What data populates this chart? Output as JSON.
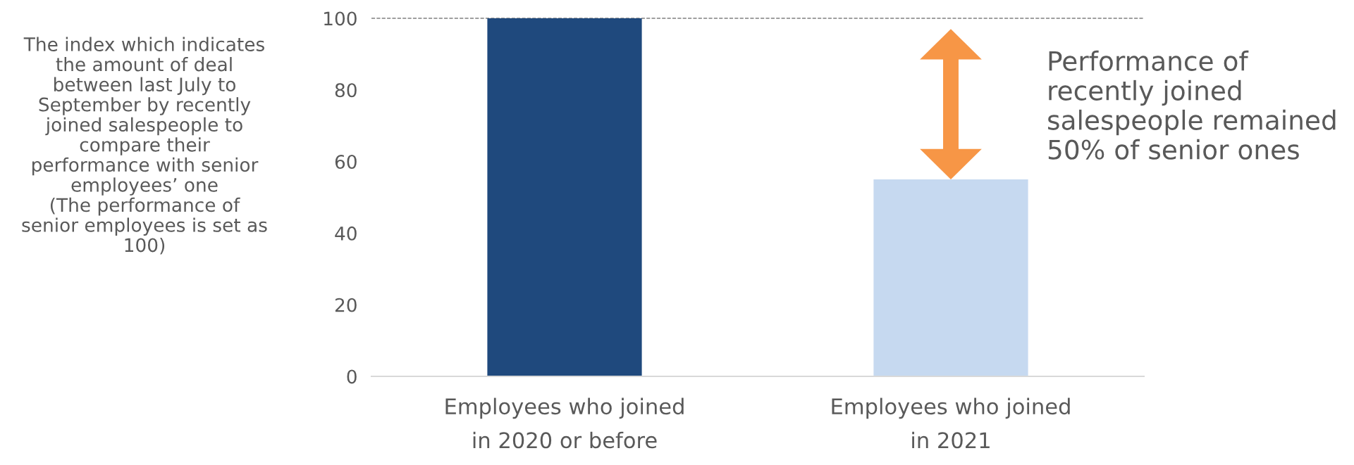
{
  "chart_data": {
    "type": "bar",
    "ylabel": "The index which indicates\nthe amount of deal\nbetween last July to\nSeptember by recently\njoined salespeople to\ncompare their\nperformance with senior\nemployees’ one\n(The performance of\nsenior employees is set as\n100)",
    "categories": [
      "Employees who joined\nin 2020 or before",
      "Employees who joined\nin 2021"
    ],
    "values": [
      100,
      55
    ],
    "colors": [
      "#1f497d",
      "#c6d9f0"
    ],
    "ylim": [
      0,
      100
    ],
    "yticks": [
      0,
      20,
      40,
      60,
      80,
      100
    ],
    "ref_lines": [
      {
        "axis": "y",
        "value": 100,
        "color": "#808080",
        "line_style": "dashed"
      }
    ],
    "annotations": [
      "Performance of\nrecently joined\nsalespeople remained\n50% of senior ones"
    ],
    "grid": false,
    "legend": false
  }
}
